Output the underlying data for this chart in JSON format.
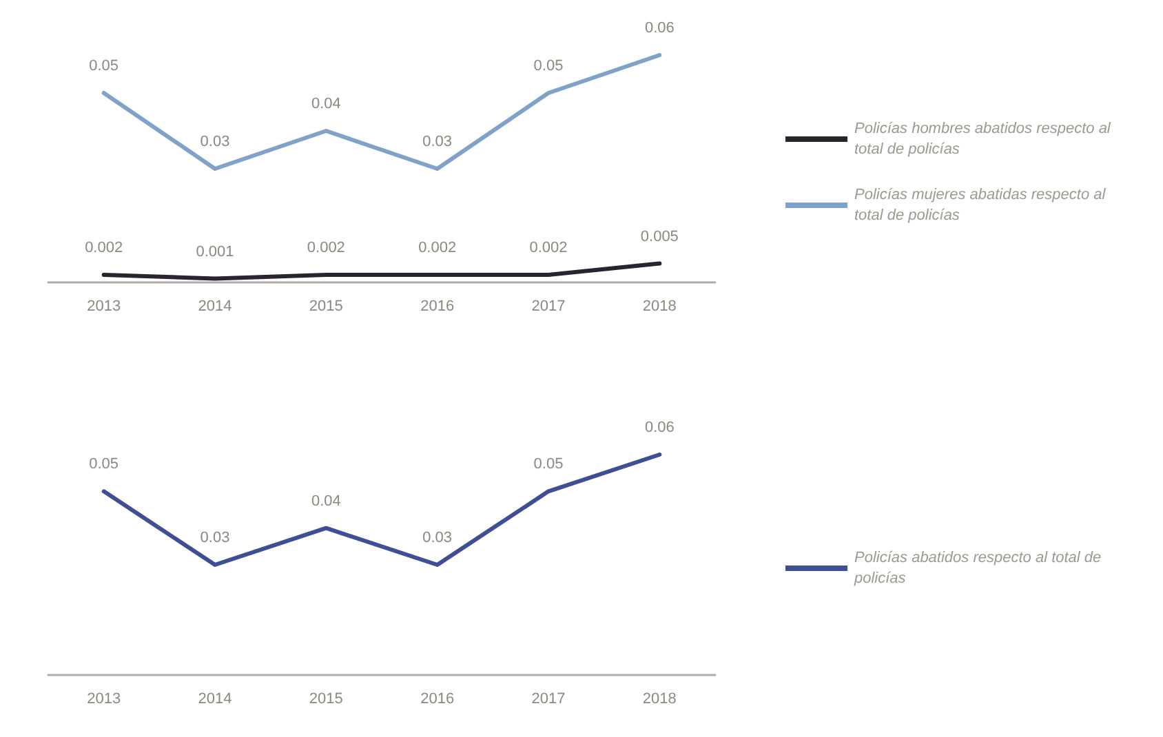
{
  "chart_data": [
    {
      "type": "line",
      "categories": [
        "2013",
        "2014",
        "2015",
        "2016",
        "2017",
        "2018"
      ],
      "series": [
        {
          "name": "Policías hombres abatidos respecto al total de policías",
          "color": "#2a2430",
          "values": [
            0.002,
            0.001,
            0.002,
            0.002,
            0.002,
            0.005
          ]
        },
        {
          "name": "Policías mujeres abatidas respecto al total de policías",
          "color": "#7fa3c8",
          "values": [
            0.05,
            0.03,
            0.04,
            0.03,
            0.05,
            0.06
          ]
        }
      ],
      "tick_labels": "x",
      "data_labels": true,
      "legend": "right",
      "grid": false,
      "marker": "none",
      "line_style": "solid"
    },
    {
      "type": "line",
      "categories": [
        "2013",
        "2014",
        "2015",
        "2016",
        "2017",
        "2018"
      ],
      "series": [
        {
          "name": "Policías abatidos respecto al total de policías",
          "color": "#3f4f95",
          "values": [
            0.05,
            0.03,
            0.04,
            0.03,
            0.05,
            0.06
          ]
        }
      ],
      "tick_labels": "x",
      "data_labels": true,
      "legend": "right",
      "grid": false,
      "marker": "none",
      "line_style": "solid"
    }
  ]
}
